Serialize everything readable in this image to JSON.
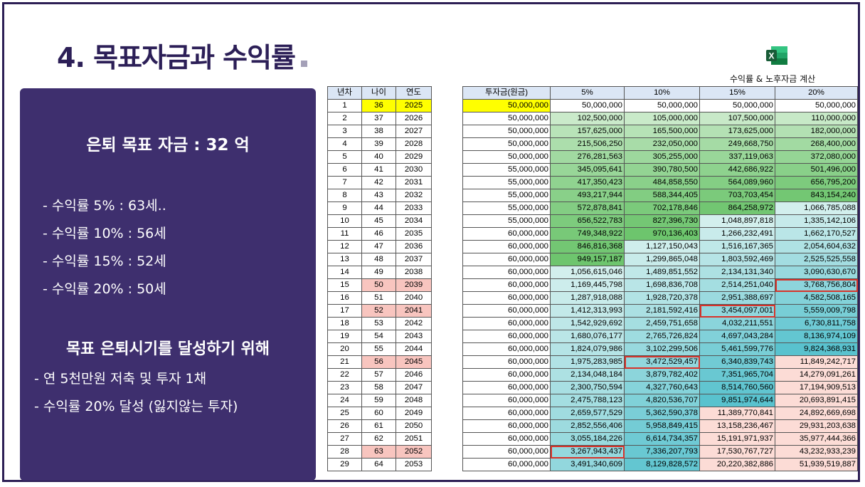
{
  "title": "4. 목표자금과 수익률",
  "excel": {
    "label": "수익률 & 노후자금 계산",
    "icon": "excel-icon"
  },
  "panel": {
    "goal": "은퇴 목표 자금 : 32 억",
    "rates": [
      "- 수익률 5% : 63세..",
      "- 수익률 10% : 56세",
      "- 수익률 15% : 52세",
      "- 수익률 20% : 50세"
    ],
    "subtitle": "목표 은퇴시기를 달성하기 위해",
    "actions": [
      "- 연 5천만원 저축 및 투자 1채",
      "- 수익률 20% 달성 (잃지않는 투자)"
    ]
  },
  "left_table": {
    "headers": [
      "년차",
      "나이",
      "연도"
    ],
    "rows": [
      [
        "1",
        "36",
        "2025"
      ],
      [
        "2",
        "37",
        "2026"
      ],
      [
        "3",
        "38",
        "2027"
      ],
      [
        "4",
        "39",
        "2028"
      ],
      [
        "5",
        "40",
        "2029"
      ],
      [
        "6",
        "41",
        "2030"
      ],
      [
        "7",
        "42",
        "2031"
      ],
      [
        "8",
        "43",
        "2032"
      ],
      [
        "9",
        "44",
        "2033"
      ],
      [
        "10",
        "45",
        "2034"
      ],
      [
        "11",
        "46",
        "2035"
      ],
      [
        "12",
        "47",
        "2036"
      ],
      [
        "13",
        "48",
        "2037"
      ],
      [
        "14",
        "49",
        "2038"
      ],
      [
        "15",
        "50",
        "2039"
      ],
      [
        "16",
        "51",
        "2040"
      ],
      [
        "17",
        "52",
        "2041"
      ],
      [
        "18",
        "53",
        "2042"
      ],
      [
        "19",
        "54",
        "2043"
      ],
      [
        "20",
        "55",
        "2044"
      ],
      [
        "21",
        "56",
        "2045"
      ],
      [
        "22",
        "57",
        "2046"
      ],
      [
        "23",
        "58",
        "2047"
      ],
      [
        "24",
        "59",
        "2048"
      ],
      [
        "25",
        "60",
        "2049"
      ],
      [
        "26",
        "61",
        "2050"
      ],
      [
        "27",
        "62",
        "2051"
      ],
      [
        "28",
        "63",
        "2052"
      ],
      [
        "29",
        "64",
        "2053"
      ]
    ]
  },
  "right_table": {
    "headers": [
      "투자금(원금)",
      "5%",
      "10%",
      "15%",
      "20%"
    ],
    "rows": [
      [
        "50,000,000",
        "50,000,000",
        "50,000,000",
        "50,000,000",
        "50,000,000"
      ],
      [
        "50,000,000",
        "102,500,000",
        "105,000,000",
        "107,500,000",
        "110,000,000"
      ],
      [
        "50,000,000",
        "157,625,000",
        "165,500,000",
        "173,625,000",
        "182,000,000"
      ],
      [
        "50,000,000",
        "215,506,250",
        "232,050,000",
        "249,668,750",
        "268,400,000"
      ],
      [
        "50,000,000",
        "276,281,563",
        "305,255,000",
        "337,119,063",
        "372,080,000"
      ],
      [
        "55,000,000",
        "345,095,641",
        "390,780,500",
        "442,686,922",
        "501,496,000"
      ],
      [
        "55,000,000",
        "417,350,423",
        "484,858,550",
        "564,089,960",
        "656,795,200"
      ],
      [
        "55,000,000",
        "493,217,944",
        "588,344,405",
        "703,703,454",
        "843,154,240"
      ],
      [
        "55,000,000",
        "572,878,841",
        "702,178,846",
        "864,258,972",
        "1,066,785,088"
      ],
      [
        "55,000,000",
        "656,522,783",
        "827,396,730",
        "1,048,897,818",
        "1,335,142,106"
      ],
      [
        "60,000,000",
        "749,348,922",
        "970,136,403",
        "1,266,232,491",
        "1,662,170,527"
      ],
      [
        "60,000,000",
        "846,816,368",
        "1,127,150,043",
        "1,516,167,365",
        "2,054,604,632"
      ],
      [
        "60,000,000",
        "949,157,187",
        "1,299,865,048",
        "1,803,592,469",
        "2,525,525,558"
      ],
      [
        "60,000,000",
        "1,056,615,046",
        "1,489,851,552",
        "2,134,131,340",
        "3,090,630,670"
      ],
      [
        "60,000,000",
        "1,169,445,798",
        "1,698,836,708",
        "2,514,251,040",
        "3,768,756,804"
      ],
      [
        "60,000,000",
        "1,287,918,088",
        "1,928,720,378",
        "2,951,388,697",
        "4,582,508,165"
      ],
      [
        "60,000,000",
        "1,412,313,993",
        "2,181,592,416",
        "3,454,097,001",
        "5,559,009,798"
      ],
      [
        "60,000,000",
        "1,542,929,692",
        "2,459,751,658",
        "4,032,211,551",
        "6,730,811,758"
      ],
      [
        "60,000,000",
        "1,680,076,177",
        "2,765,726,824",
        "4,697,043,284",
        "8,136,974,109"
      ],
      [
        "60,000,000",
        "1,824,079,986",
        "3,102,299,506",
        "5,461,599,776",
        "9,824,368,931"
      ],
      [
        "60,000,000",
        "1,975,283,985",
        "3,472,529,457",
        "6,340,839,743",
        "11,849,242,717"
      ],
      [
        "60,000,000",
        "2,134,048,184",
        "3,879,782,402",
        "7,351,965,704",
        "14,279,091,261"
      ],
      [
        "60,000,000",
        "2,300,750,594",
        "4,327,760,643",
        "8,514,760,560",
        "17,194,909,513"
      ],
      [
        "60,000,000",
        "2,475,788,123",
        "4,820,536,707",
        "9,851,974,644",
        "20,693,891,415"
      ],
      [
        "60,000,000",
        "2,659,577,529",
        "5,362,590,378",
        "11,389,770,841",
        "24,892,669,698"
      ],
      [
        "60,000,000",
        "2,852,556,406",
        "5,958,849,415",
        "13,158,236,467",
        "29,931,203,638"
      ],
      [
        "60,000,000",
        "3,055,184,226",
        "6,614,734,357",
        "15,191,971,937",
        "35,977,444,366"
      ],
      [
        "60,000,000",
        "3,267,943,437",
        "7,336,207,793",
        "17,530,767,727",
        "43,232,933,239"
      ],
      [
        "60,000,000",
        "3,491,340,609",
        "8,129,828,572",
        "20,220,382,886",
        "51,939,519,887"
      ]
    ]
  },
  "colors": {
    "title": "#2c1f57",
    "panel": "#3e2f6e",
    "highlight_yellow": "#ffff00",
    "highlight_pink": "#f8c5bf",
    "target_box": "#d8332a"
  }
}
